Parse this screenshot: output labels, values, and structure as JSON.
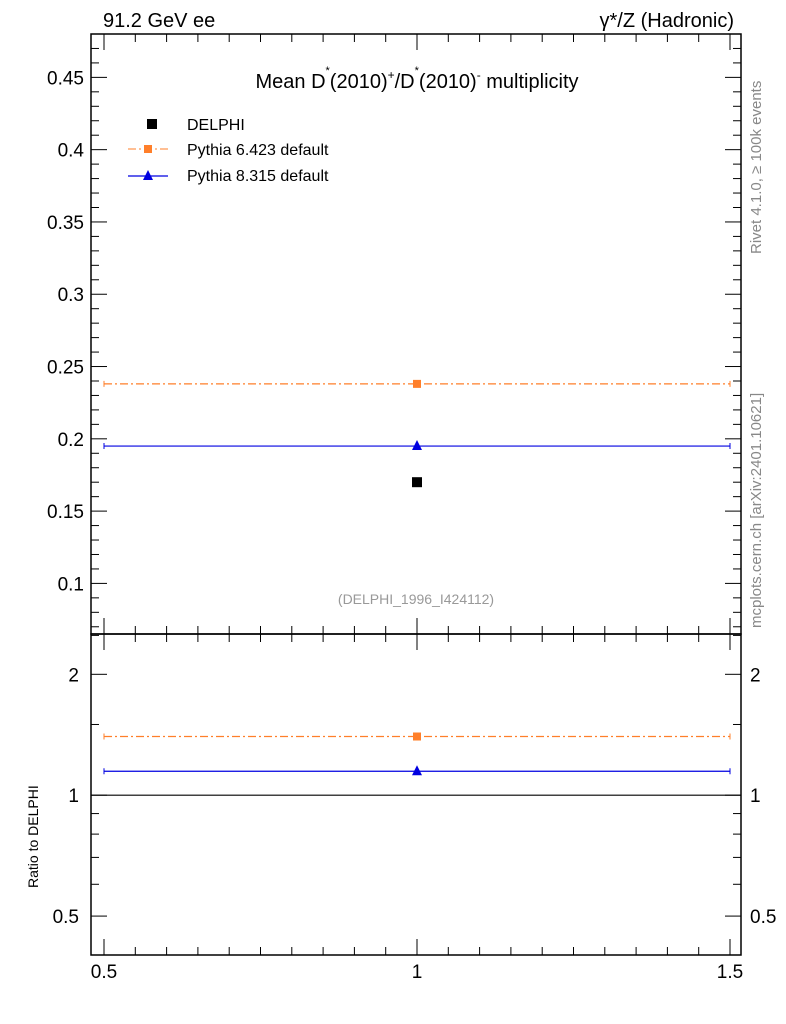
{
  "header": {
    "left": "91.2 GeV ee",
    "right": "γ*/Z (Hadronic)"
  },
  "side_labels": {
    "top": "Rivet 4.1.0, ≥ 100k events",
    "bottom": "mcplots.cern.ch [arXiv:2401.10621]"
  },
  "chart_data": [
    {
      "type": "scatter",
      "title": "Mean D*(2010)+/D*(2010)- multiplicity",
      "title_parts": {
        "a": "Mean D",
        "b": "(2010)",
        "c": "/D",
        "d": "(2010)",
        "e": " multiplicity",
        "star": "*",
        "plus": "+",
        "minus": "-"
      },
      "watermark": "(DELPHI_1996_I424112)",
      "xlim": [
        0.5,
        1.5
      ],
      "ylim": [
        0.065,
        0.48
      ],
      "yticks": [
        "0.1",
        "0.15",
        "0.2",
        "0.25",
        "0.3",
        "0.35",
        "0.4",
        "0.45"
      ],
      "legend_position": "top-left",
      "series": [
        {
          "name": "DELPHI",
          "x": [
            1
          ],
          "y": [
            0.17
          ],
          "color": "#000000",
          "marker": "square",
          "line": "none"
        },
        {
          "name": "Pythia 6.423 default",
          "x": [
            1
          ],
          "xerr": [
            0.5
          ],
          "y": [
            0.238
          ],
          "color": "#ff7f2a",
          "marker": "square",
          "line": "dashdot"
        },
        {
          "name": "Pythia 8.315 default",
          "x": [
            1
          ],
          "xerr": [
            0.5
          ],
          "y": [
            0.195
          ],
          "color": "#0000e0",
          "marker": "triangle",
          "line": "solid"
        }
      ]
    },
    {
      "type": "scatter",
      "ylabel": "Ratio to DELPHI",
      "yscale": "log",
      "ylim": [
        0.4,
        2.52
      ],
      "xlim": [
        0.5,
        1.5
      ],
      "yticks": [
        "0.5",
        "1",
        "2"
      ],
      "xticks": [
        "0.5",
        "1",
        "1.5"
      ],
      "reference": 1,
      "series": [
        {
          "name": "Pythia 6.423 default",
          "x": [
            1
          ],
          "y": [
            1.4
          ],
          "color": "#ff7f2a"
        },
        {
          "name": "Pythia 8.315 default",
          "x": [
            1
          ],
          "y": [
            1.147
          ],
          "color": "#0000e0"
        }
      ]
    }
  ]
}
